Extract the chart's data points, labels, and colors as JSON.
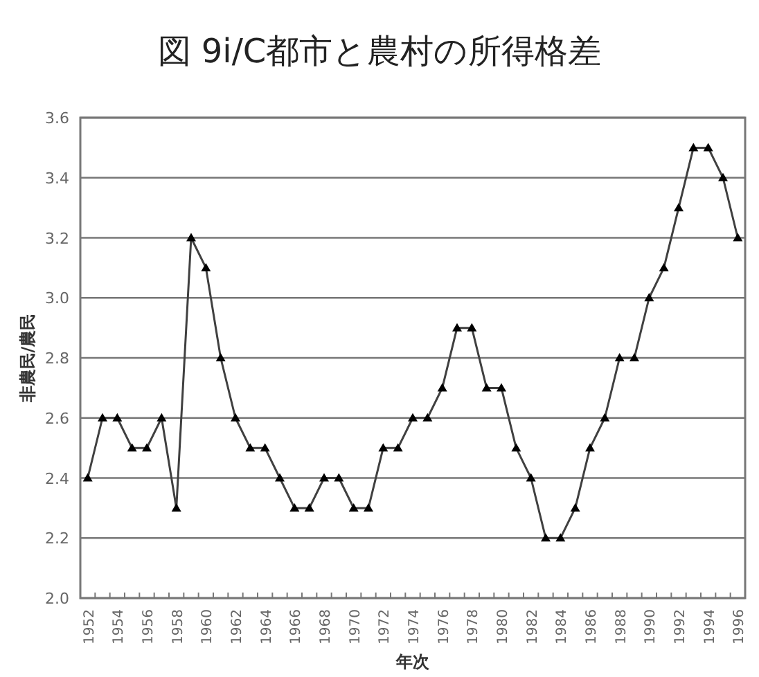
{
  "chart_data": {
    "type": "line",
    "title": "図 9i/C都市と農村の所得格差",
    "xlabel": "年次",
    "ylabel": "非農民/農民",
    "categories": [
      "1952",
      null,
      "1954",
      null,
      "1956",
      null,
      "1958",
      null,
      "1960",
      null,
      "1962",
      null,
      "1964",
      null,
      "1966",
      null,
      "1968",
      null,
      "1970",
      null,
      "1972",
      null,
      "1974",
      null,
      "1976",
      null,
      "1978",
      null,
      "1980",
      null,
      "1982",
      null,
      "1984",
      null,
      "1986",
      null,
      "1988",
      null,
      "1990",
      null,
      "1992",
      null,
      "1994",
      null,
      "1996"
    ],
    "series": [
      {
        "color": "#404040",
        "values": [
          2.4,
          2.6,
          2.6,
          2.5,
          2.5,
          2.6,
          2.3,
          3.2,
          3.1,
          2.8,
          2.6,
          2.5,
          2.5,
          2.4,
          2.3,
          2.3,
          2.4,
          2.4,
          2.3,
          2.3,
          2.5,
          2.5,
          2.6,
          2.6,
          2.7,
          2.9,
          2.9,
          2.7,
          2.7,
          2.5,
          2.4,
          2.2,
          2.2,
          2.3,
          2.5,
          2.6,
          2.8,
          2.8,
          3.0,
          3.1,
          3.3,
          3.5,
          3.5,
          3.4,
          3.2
        ]
      }
    ],
    "ylim": [
      2.0,
      3.6
    ],
    "yticks": [
      {
        "value": 2.0,
        "label": "2.0"
      },
      2.2,
      2.4,
      2.6,
      2.8,
      {
        "value": 3.0,
        "label": "3.0"
      },
      3.2,
      3.4,
      3.6
    ],
    "grid": "y",
    "marker": "triangle",
    "line_style": "solid"
  }
}
